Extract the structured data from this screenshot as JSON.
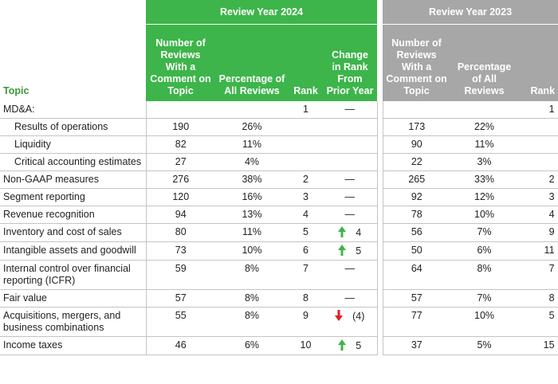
{
  "header": {
    "topic": "Topic",
    "group_2024": "Review Year 2024",
    "group_2023": "Review Year 2023",
    "columns_2024": [
      "Number of Reviews With a Comment on Topic",
      "Percentage of All Reviews",
      "Rank",
      "Change in Rank From Prior Year"
    ],
    "columns_2023": [
      "Number of Reviews With a Comment on Topic",
      "Percentage of All Reviews",
      "Rank"
    ]
  },
  "rows": [
    {
      "cells": [
        "MD&A:",
        null,
        null,
        "1",
        "—",
        null,
        null,
        "1"
      ]
    },
    {
      "indent": true,
      "cells": [
        "Results of operations",
        "190",
        "26%",
        null,
        null,
        "173",
        "22%",
        null
      ]
    },
    {
      "indent": true,
      "cells": [
        "Liquidity",
        "82",
        "11%",
        null,
        null,
        "90",
        "11%",
        null
      ]
    },
    {
      "indent": true,
      "cells": [
        "Critical accounting estimates",
        "27",
        "4%",
        null,
        null,
        "22",
        "3%",
        null
      ]
    },
    {
      "cells": [
        "Non-GAAP measures",
        "276",
        "38%",
        "2",
        "—",
        "265",
        "33%",
        "2"
      ]
    },
    {
      "cells": [
        "Segment reporting",
        "120",
        "16%",
        "3",
        "—",
        "92",
        "12%",
        "3"
      ]
    },
    {
      "cells": [
        "Revenue recognition",
        "94",
        "13%",
        "4",
        "—",
        "78",
        "10%",
        "4"
      ]
    },
    {
      "cells": [
        "Inventory and cost of sales",
        "80",
        "11%",
        "5",
        "4",
        "56",
        "7%",
        "9"
      ]
    },
    {
      "cells": [
        "Intangible assets and goodwill",
        "73",
        "10%",
        "6",
        "5",
        "50",
        "6%",
        "11"
      ]
    },
    {
      "cells": [
        "Internal control over financial reporting (ICFR)",
        "59",
        "8%",
        "7",
        "—",
        "64",
        "8%",
        "7"
      ]
    },
    {
      "cells": [
        "Fair value",
        "57",
        "8%",
        "8",
        "—",
        "57",
        "7%",
        "8"
      ]
    },
    {
      "cells": [
        "Acquisitions, mergers, and business combinations",
        "55",
        "8%",
        "9",
        "(4)",
        "77",
        "10%",
        "5"
      ]
    },
    {
      "cells": [
        "Income taxes",
        "46",
        "6%",
        "10",
        "5",
        "37",
        "5%",
        "15"
      ]
    }
  ]
}
